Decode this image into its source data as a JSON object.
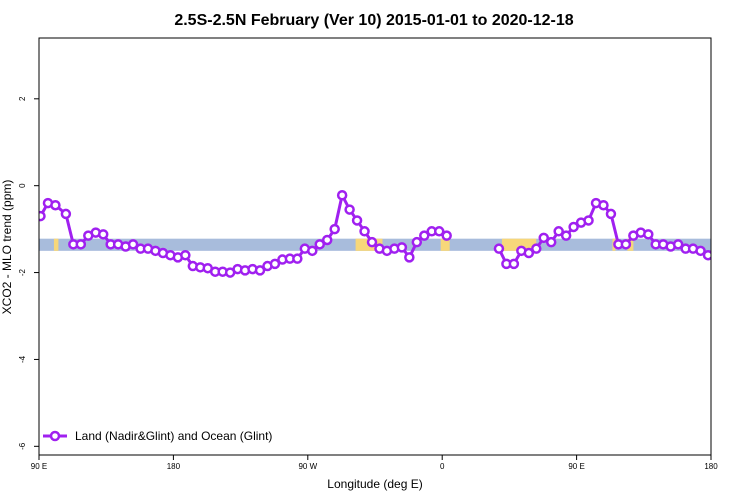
{
  "chart_data": {
    "type": "line",
    "title": "2.5S-2.5N February (Ver 10)   2015-01-01 to 2020-12-18",
    "xlabel": "Longitude (deg E)",
    "ylabel": "XCO2 - MLO trend (ppm)",
    "xlim": [
      90,
      540
    ],
    "ylim": [
      -6.2,
      3.4
    ],
    "x_ticks": [
      {
        "value": 90,
        "label": "90 E"
      },
      {
        "value": 180,
        "label": "180"
      },
      {
        "value": 270,
        "label": "90 W"
      },
      {
        "value": 360,
        "label": "0"
      },
      {
        "value": 450,
        "label": "90 E"
      },
      {
        "value": 540,
        "label": "180"
      }
    ],
    "y_ticks": [
      {
        "value": 2,
        "label": "2"
      },
      {
        "value": 0,
        "label": "0"
      },
      {
        "value": -2,
        "label": "-2"
      },
      {
        "value": -4,
        "label": "-4"
      },
      {
        "value": -6,
        "label": "-6"
      }
    ],
    "legend": {
      "position": "bottom-left",
      "label": "Land (Nadir&Glint) and Ocean (Glint)"
    },
    "colors": {
      "series": "#a020f0",
      "ocean": "#a8bcdc",
      "land": "#f7d77a"
    },
    "land_ocean_band": {
      "y_range": [
        -1.5,
        -1.22
      ],
      "land_segments": [
        [
          100,
          103
        ],
        [
          302,
          320
        ],
        [
          359,
          365
        ],
        [
          400,
          423
        ],
        [
          474,
          476
        ],
        [
          484,
          488
        ],
        [
          575,
          580
        ]
      ]
    },
    "series": [
      {
        "name": "Land (Nadir&Glint) and Ocean (Glint)",
        "x": [
          91,
          96,
          101,
          108,
          113,
          118,
          123,
          128,
          133,
          138,
          143,
          148,
          153,
          158,
          163,
          168,
          173,
          178,
          183,
          188,
          193,
          198,
          203,
          208,
          213,
          218,
          223,
          228,
          233,
          238,
          243,
          248,
          253,
          258,
          263,
          268,
          273,
          278,
          283,
          288,
          293,
          298,
          303,
          308,
          313,
          318,
          323,
          328,
          333,
          338,
          343,
          348,
          353,
          358,
          363,
          368,
          373,
          378,
          383,
          388,
          393,
          398,
          403,
          408,
          413,
          418,
          423,
          428,
          433,
          438,
          443,
          448,
          453,
          458,
          463,
          468,
          473,
          478,
          483,
          488,
          493,
          498,
          503,
          508,
          513,
          518,
          523,
          528,
          533,
          538
        ],
        "y": [
          -0.7,
          -0.4,
          -0.45,
          -0.65,
          -1.35,
          -1.35,
          -1.15,
          -1.08,
          -1.12,
          -1.35,
          -1.35,
          -1.4,
          -1.35,
          -1.45,
          -1.45,
          -1.5,
          -1.55,
          -1.6,
          -1.65,
          -1.6,
          -1.85,
          -1.88,
          -1.9,
          -1.98,
          -1.98,
          -2.0,
          -1.92,
          -1.95,
          -1.92,
          -1.95,
          -1.85,
          -1.8,
          -1.7,
          -1.68,
          -1.68,
          -1.45,
          -1.5,
          -1.35,
          -1.25,
          -1.0,
          -0.22,
          -0.55,
          -0.8,
          -1.05,
          -1.3,
          -1.45,
          -1.5,
          -1.45,
          -1.42,
          -1.65,
          -1.3,
          -1.15,
          -1.05,
          -1.05,
          -1.15,
          null,
          null,
          null,
          null,
          null,
          null,
          -1.45,
          -1.8,
          -1.8,
          -1.5,
          -1.55,
          -1.45,
          -1.2,
          -1.3,
          -1.05,
          -1.15,
          -0.95,
          -0.85,
          -0.8,
          -0.4,
          -0.45,
          -0.65,
          -1.35,
          -1.35,
          -1.15,
          -1.08,
          -1.12,
          -1.35,
          -1.35,
          -1.4,
          -1.35,
          -1.45,
          -1.45,
          -1.5,
          -1.6
        ]
      }
    ]
  }
}
